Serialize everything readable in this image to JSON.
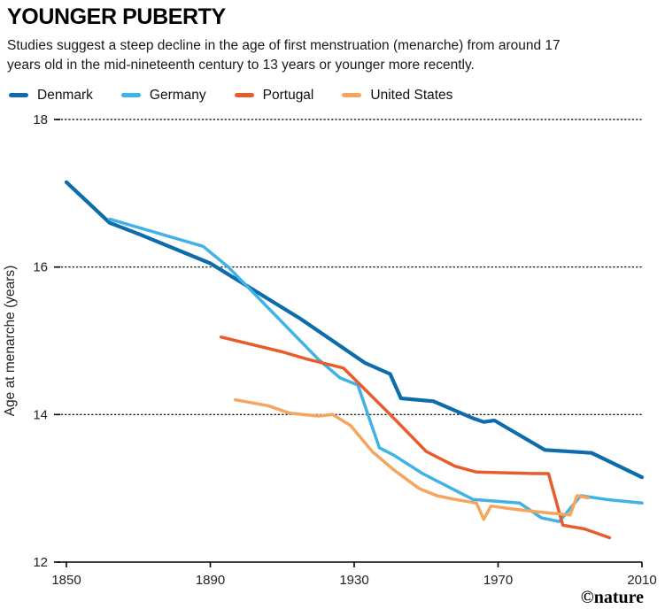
{
  "header": {
    "title": "YOUNGER PUBERTY",
    "subtitle": "Studies suggest a steep decline in the age of first menstruation (menarche) from around 17 years old in the mid-nineteenth century to 13 years or younger more recently."
  },
  "credit": "©nature",
  "chart_data": {
    "type": "line",
    "title": "YOUNGER PUBERTY",
    "xlabel": "",
    "ylabel": "Age at menarche (years)",
    "xlim": [
      1845,
      2012
    ],
    "ylim": [
      12,
      18
    ],
    "xticks": [
      1850,
      1890,
      1930,
      1970,
      2010
    ],
    "yticks": [
      12,
      14,
      16,
      18
    ],
    "grid": "horizontal-dotted",
    "legend_position": "top-left",
    "axis_color": "#000000",
    "tick_label_color": "#222222",
    "series": [
      {
        "name": "Denmark",
        "color": "#0d6cab",
        "points": [
          [
            1850,
            17.15
          ],
          [
            1862,
            16.6
          ],
          [
            1870,
            16.45
          ],
          [
            1890,
            16.05
          ],
          [
            1915,
            15.3
          ],
          [
            1933,
            14.7
          ],
          [
            1940,
            14.55
          ],
          [
            1943,
            14.22
          ],
          [
            1952,
            14.18
          ],
          [
            1963,
            13.95
          ],
          [
            1966,
            13.9
          ],
          [
            1969,
            13.92
          ],
          [
            1983,
            13.52
          ],
          [
            1996,
            13.48
          ],
          [
            2010,
            13.15
          ]
        ]
      },
      {
        "name": "Germany",
        "color": "#41b2e5",
        "points": [
          [
            1862,
            16.65
          ],
          [
            1888,
            16.28
          ],
          [
            1895,
            16.0
          ],
          [
            1920,
            14.75
          ],
          [
            1926,
            14.5
          ],
          [
            1931,
            14.4
          ],
          [
            1937,
            13.55
          ],
          [
            1941,
            13.45
          ],
          [
            1949,
            13.2
          ],
          [
            1957,
            13.0
          ],
          [
            1963,
            12.85
          ],
          [
            1976,
            12.8
          ],
          [
            1982,
            12.6
          ],
          [
            1987,
            12.55
          ],
          [
            1993,
            12.9
          ],
          [
            2000,
            12.85
          ],
          [
            2010,
            12.8
          ]
        ]
      },
      {
        "name": "Portugal",
        "color": "#e85c2b",
        "points": [
          [
            1893,
            15.05
          ],
          [
            1910,
            14.85
          ],
          [
            1917,
            14.75
          ],
          [
            1927,
            14.63
          ],
          [
            1940,
            14.0
          ],
          [
            1950,
            13.5
          ],
          [
            1958,
            13.3
          ],
          [
            1964,
            13.22
          ],
          [
            1980,
            13.2
          ],
          [
            1984,
            13.2
          ],
          [
            1988,
            12.5
          ],
          [
            1994,
            12.45
          ],
          [
            2001,
            12.33
          ]
        ]
      },
      {
        "name": "United States",
        "color": "#f6a55e",
        "points": [
          [
            1897,
            14.2
          ],
          [
            1906,
            14.12
          ],
          [
            1912,
            14.02
          ],
          [
            1920,
            13.98
          ],
          [
            1924,
            14.0
          ],
          [
            1929,
            13.85
          ],
          [
            1935,
            13.5
          ],
          [
            1941,
            13.25
          ],
          [
            1948,
            13.0
          ],
          [
            1953,
            12.9
          ],
          [
            1958,
            12.85
          ],
          [
            1964,
            12.8
          ],
          [
            1966,
            12.58
          ],
          [
            1968,
            12.76
          ],
          [
            1974,
            12.72
          ],
          [
            1981,
            12.68
          ],
          [
            1990,
            12.64
          ],
          [
            1992,
            12.9
          ],
          [
            1995,
            12.87
          ]
        ]
      }
    ]
  }
}
